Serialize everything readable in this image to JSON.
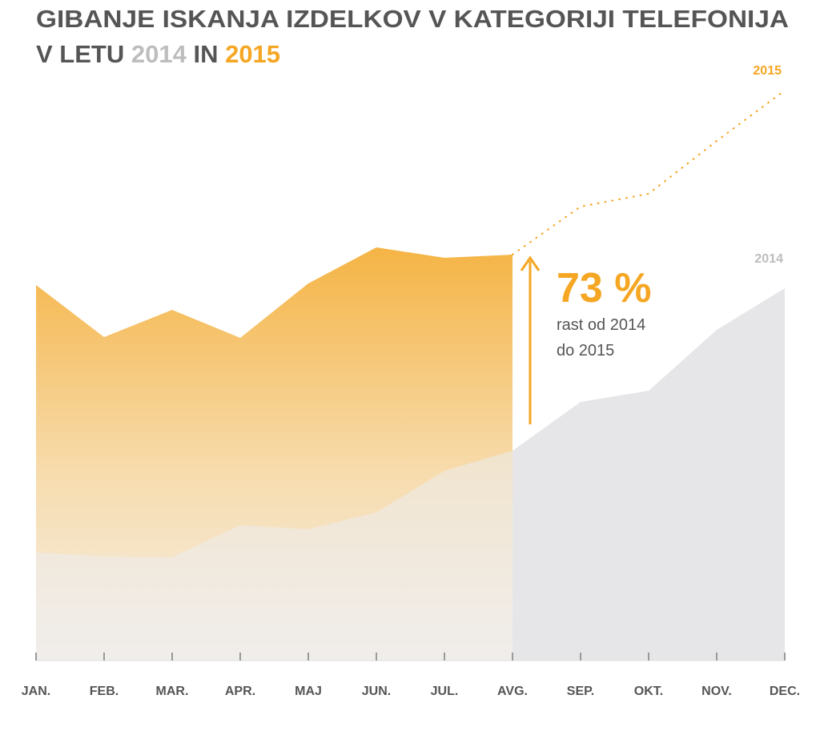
{
  "chart_data": {
    "type": "area",
    "title": "GIBANJE ISKANJA IZDELKOV V KATEGORIJI TELEFONIJA",
    "title_parts": [
      "V LETU",
      "2014",
      "IN",
      "2015"
    ],
    "categories": [
      "JAN.",
      "FEB.",
      "MAR.",
      "APR.",
      "MAJ",
      "JUN.",
      "JUL.",
      "AVG.",
      "SEP.",
      "OKT.",
      "NOV.",
      "DEC."
    ],
    "series": [
      {
        "name": "2014",
        "color": "#e6e6e8",
        "label_color": "#bdbdbd",
        "values": [
          135,
          130,
          129,
          169,
          164,
          185,
          237,
          262,
          323,
          337,
          413,
          465
        ]
      },
      {
        "name": "2015",
        "color": "#f5a623",
        "values": [
          469,
          404,
          438,
          403,
          471,
          516,
          503,
          507,
          null,
          null,
          null,
          null
        ],
        "projection_values": [
          null,
          null,
          null,
          null,
          null,
          null,
          null,
          507,
          567,
          583,
          649,
          712
        ]
      }
    ],
    "annotation": {
      "value_text": "73 %",
      "lines": [
        "rast od 2014",
        "do 2015"
      ]
    },
    "ylim": [
      0,
      725
    ]
  }
}
